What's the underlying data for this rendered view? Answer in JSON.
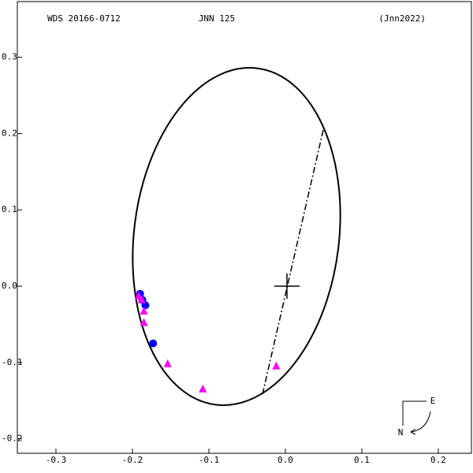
{
  "chart_data": {
    "type": "scatter",
    "title_left": "WDS 20166-0712",
    "title": "JNN 125",
    "title_right": "(Jnn2022)",
    "compass_east": "E",
    "compass_north": "N",
    "xlim": [
      -0.3505,
      0.2433
    ],
    "ylim": [
      -0.219,
      0.373
    ],
    "xticks": [
      -0.3,
      -0.2,
      -0.1,
      {
        "value": 0,
        "label": "0.0"
      },
      0.1,
      0.2
    ],
    "yticks": [
      0.3,
      0.2,
      0.1,
      {
        "value": 0,
        "label": "0.0"
      },
      -0.1,
      -0.2
    ],
    "series": [
      {
        "color": "#0000ff",
        "marker": "circle",
        "x": [
          -0.19,
          -0.187,
          -0.183,
          -0.173
        ],
        "y": [
          -0.01,
          -0.018,
          -0.025,
          -0.075
        ]
      },
      {
        "color": "#ff00ff",
        "marker": "triangle",
        "x": [
          -0.192,
          -0.188,
          -0.185,
          -0.185,
          -0.154,
          -0.108,
          -0.012
        ],
        "y": [
          -0.013,
          -0.018,
          -0.033,
          -0.048,
          -0.102,
          -0.135,
          -0.105
        ]
      }
    ]
  }
}
